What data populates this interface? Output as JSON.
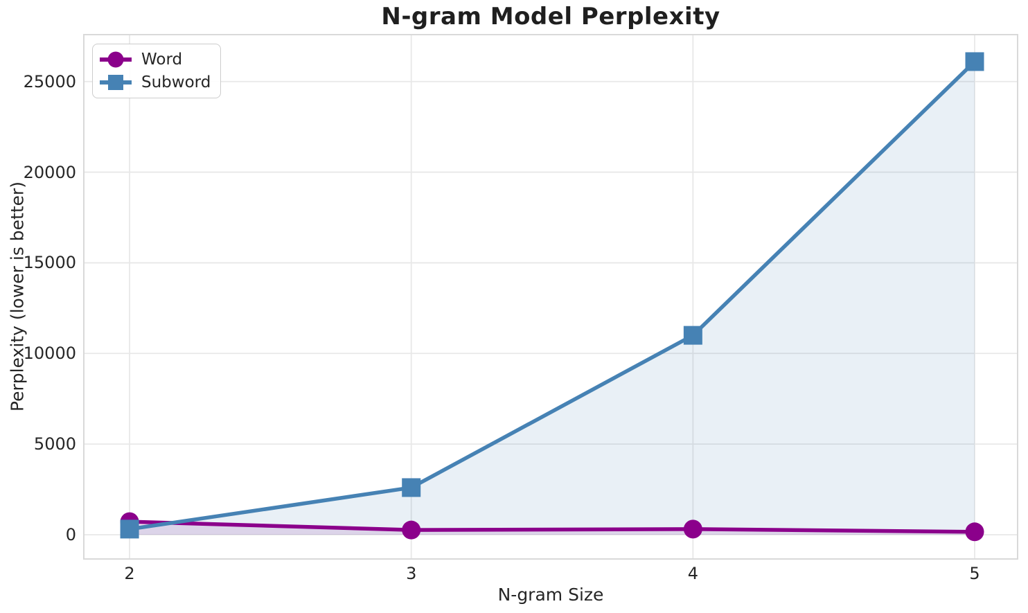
{
  "chart_data": {
    "type": "line",
    "title": "N-gram Model Perplexity",
    "xlabel": "N-gram Size",
    "ylabel": "Perplexity (lower is better)",
    "x": [
      2,
      3,
      4,
      5
    ],
    "series": [
      {
        "name": "Word",
        "marker": "circle",
        "color": "#8B008B",
        "fill_color": "rgba(139,0,139,0.12)",
        "values": [
          720,
          260,
          310,
          160
        ]
      },
      {
        "name": "Subword",
        "marker": "square",
        "color": "#4682B4",
        "fill_color": "rgba(70,130,180,0.12)",
        "values": [
          310,
          2600,
          11000,
          26100
        ]
      }
    ],
    "xticks": [
      "2",
      "3",
      "4",
      "5"
    ],
    "xtick_values": [
      2,
      3,
      4,
      5
    ],
    "yticks": [
      "0",
      "5000",
      "10000",
      "15000",
      "20000",
      "25000"
    ],
    "ytick_values": [
      0,
      5000,
      10000,
      15000,
      20000,
      25000
    ],
    "xlim": [
      1.84,
      5.15
    ],
    "ylim": [
      -1300,
      27550
    ],
    "grid": true,
    "area_fill_to_zero": true,
    "legend_position": "upper-left"
  },
  "colors": {
    "background": "#FFFFFF",
    "grid": "#E8E8E8",
    "spine": "#D9D9D9",
    "text": "#262626",
    "title_text": "#1F1F1F",
    "legend_border": "#CCCCCC",
    "word_series": "#8B008B",
    "subword_series": "#4682B4"
  }
}
